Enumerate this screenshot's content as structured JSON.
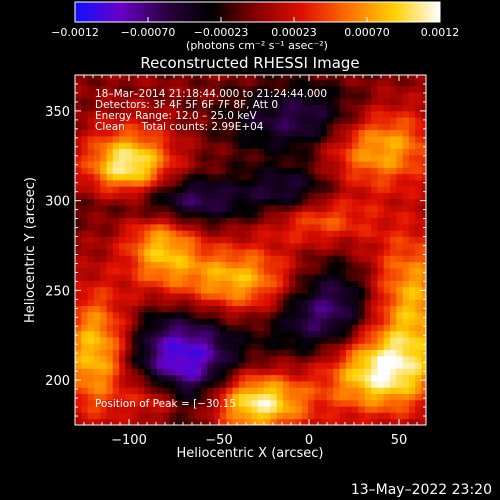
{
  "chart_data": {
    "type": "heatmap",
    "title": "Reconstructed RHESSI Image",
    "xlabel": "Heliocentric X (arcsec)",
    "ylabel": "Heliocentric Y (arcsec)",
    "xlim": [
      -130,
      65
    ],
    "ylim": [
      175,
      370
    ],
    "x_ticks": [
      -100,
      -50,
      0,
      50
    ],
    "y_ticks": [
      200,
      250,
      300,
      350
    ],
    "x_tick_labels": [
      "−100",
      "−50",
      "0",
      "50"
    ],
    "y_tick_labels": [
      "200",
      "250",
      "300",
      "350"
    ],
    "colorbar": {
      "range": [
        -0.0012,
        0.0012
      ],
      "tick_labels": [
        "−0.0012",
        "−0.00070",
        "−0.00023",
        "0.00023",
        "0.00070",
        "0.0012"
      ],
      "units": "(photons cm⁻² s⁻¹ asec⁻²)",
      "colors": [
        "#1010ff",
        "#6a00c8",
        "#2a0040",
        "#000000",
        "#8a0000",
        "#e01000",
        "#ff7000",
        "#ffd000",
        "#ffffff"
      ]
    },
    "annotations": [
      "18–Mar–2014 21:18:44.000 to 21:24:44.000",
      "Detectors: 3F 4F 5F 6F 7F 8F, Att 0",
      "Energy Range: 12.0 – 25.0 keV",
      "Clean     Total counts: 2.99E+04"
    ],
    "peak_label": "Position of Peak = [−30.15",
    "intensity_sources": [
      {
        "x": -100,
        "y": 318,
        "sx": 17,
        "sy": 15,
        "value": 0.0012
      },
      {
        "x": 38,
        "y": 332,
        "sx": 22,
        "sy": 16,
        "value": 0.00095
      },
      {
        "x": -38,
        "y": 255,
        "sx": 28,
        "sy": 14,
        "value": 0.00095
      },
      {
        "x": -82,
        "y": 276,
        "sx": 14,
        "sy": 16,
        "value": 0.0008
      },
      {
        "x": 55,
        "y": 245,
        "sx": 18,
        "sy": 26,
        "value": 0.0009
      },
      {
        "x": 38,
        "y": 205,
        "sx": 22,
        "sy": 16,
        "value": 0.0011
      },
      {
        "x": -30,
        "y": 188,
        "sx": 20,
        "sy": 12,
        "value": 0.0012
      },
      {
        "x": -118,
        "y": 215,
        "sx": 14,
        "sy": 24,
        "value": 0.00095
      },
      {
        "x": -85,
        "y": 190,
        "sx": 12,
        "sy": 10,
        "value": 0.0007
      },
      {
        "x": 5,
        "y": 290,
        "sx": 20,
        "sy": 10,
        "value": 0.0006
      },
      {
        "x": -78,
        "y": 300,
        "sx": 28,
        "sy": 10,
        "value": -0.0009
      },
      {
        "x": -70,
        "y": 210,
        "sx": 22,
        "sy": 22,
        "value": -0.0011
      },
      {
        "x": 10,
        "y": 240,
        "sx": 24,
        "sy": 20,
        "value": -0.0009
      },
      {
        "x": 0,
        "y": 345,
        "sx": 30,
        "sy": 14,
        "value": -0.0007
      },
      {
        "x": -10,
        "y": 305,
        "sx": 18,
        "sy": 10,
        "value": -0.0006
      }
    ]
  },
  "footer": {
    "timestamp": "13–May–2022 23:20"
  }
}
